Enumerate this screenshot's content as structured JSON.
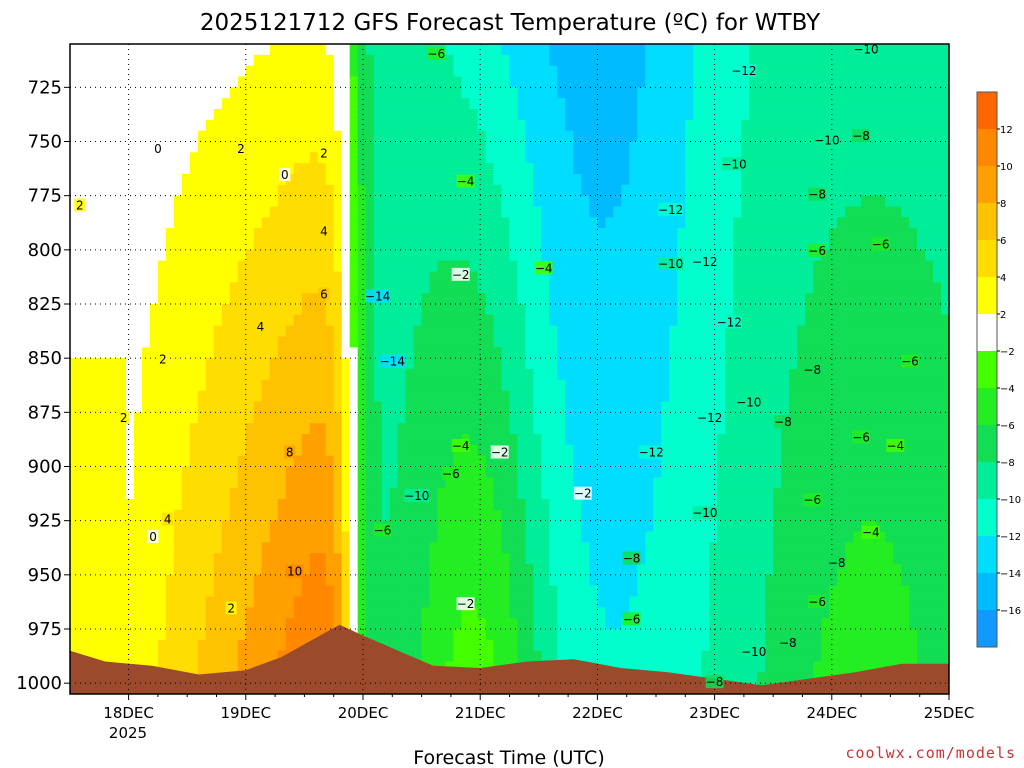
{
  "chart_data": {
    "type": "heatmap",
    "title": "2025121712 GFS Forecast Temperature (ºC) for WTBY",
    "xlabel": "Forecast Time (UTC)",
    "ylabel": "",
    "credit": "coolwx.com/models",
    "x_ticks": [
      "18DEC",
      "19DEC",
      "20DEC",
      "21DEC",
      "22DEC",
      "23DEC",
      "24DEC",
      "25DEC"
    ],
    "x_year": "2025",
    "x_range": [
      "17DEC 12Z",
      "25DEC 00Z"
    ],
    "y_ticks": [
      725,
      750,
      775,
      800,
      825,
      850,
      875,
      900,
      925,
      950,
      975,
      1000
    ],
    "y_range": [
      705,
      1005
    ],
    "y_inverted": true,
    "grid": true,
    "colorbar": {
      "placement": "right",
      "ticks": [
        12,
        10,
        8,
        6,
        4,
        2,
        -2,
        -4,
        -6,
        -8,
        -10,
        -12,
        -14,
        -16
      ],
      "colors": [
        "#ff6600",
        "#ff8800",
        "#ffa000",
        "#ffc200",
        "#ffdd00",
        "#ffff00",
        "#ffffff",
        "#44ff00",
        "#22ee22",
        "#11dd55",
        "#00ee99",
        "#00ffcc",
        "#00ddff",
        "#00bbff",
        "#1199ff"
      ]
    },
    "contour_labels": [
      {
        "t": "17DEC 14Z",
        "p": 780,
        "v": "2"
      },
      {
        "t": "18DEC 06Z",
        "p": 754,
        "v": "0"
      },
      {
        "t": "18DEC 23Z",
        "p": 754,
        "v": "2"
      },
      {
        "t": "19DEC 08Z",
        "p": 766,
        "v": "0"
      },
      {
        "t": "19DEC 16Z",
        "p": 756,
        "v": "2"
      },
      {
        "t": "19DEC 16Z",
        "p": 792,
        "v": "4"
      },
      {
        "t": "19DEC 16Z",
        "p": 821,
        "v": "6"
      },
      {
        "t": "19DEC 03Z",
        "p": 836,
        "v": "4"
      },
      {
        "t": "18DEC 07Z",
        "p": 851,
        "v": "2"
      },
      {
        "t": "17DEC 23Z",
        "p": 878,
        "v": "2"
      },
      {
        "t": "19DEC 09Z",
        "p": 894,
        "v": "8"
      },
      {
        "t": "18DEC 08Z",
        "p": 925,
        "v": "4"
      },
      {
        "t": "18DEC 05Z",
        "p": 933,
        "v": "0"
      },
      {
        "t": "18DEC 21Z",
        "p": 966,
        "v": "2"
      },
      {
        "t": "19DEC 10Z",
        "p": 949,
        "v": "10"
      },
      {
        "t": "20DEC 15Z",
        "p": 710,
        "v": "-6"
      },
      {
        "t": "20DEC 03Z",
        "p": 822,
        "v": "-14"
      },
      {
        "t": "20DEC 06Z",
        "p": 852,
        "v": "-14"
      },
      {
        "t": "20DEC 21Z",
        "p": 769,
        "v": "-4"
      },
      {
        "t": "20DEC 20Z",
        "p": 812,
        "v": "-2"
      },
      {
        "t": "21DEC 13Z",
        "p": 809,
        "v": "-4"
      },
      {
        "t": "20DEC 20Z",
        "p": 891,
        "v": "-4"
      },
      {
        "t": "21DEC 04Z",
        "p": 894,
        "v": "-2"
      },
      {
        "t": "20DEC 18Z",
        "p": 904,
        "v": "-6"
      },
      {
        "t": "20DEC 11Z",
        "p": 914,
        "v": "-10"
      },
      {
        "t": "20DEC 04Z",
        "p": 930,
        "v": "-6"
      },
      {
        "t": "20DEC 21Z",
        "p": 964,
        "v": "-2"
      },
      {
        "t": "21DEC 21Z",
        "p": 913,
        "v": "-2"
      },
      {
        "t": "22DEC 15Z",
        "p": 782,
        "v": "-12"
      },
      {
        "t": "22DEC 15Z",
        "p": 807,
        "v": "-10"
      },
      {
        "t": "22DEC 22Z",
        "p": 806,
        "v": "-12"
      },
      {
        "t": "23DEC 04Z",
        "p": 761,
        "v": "-10"
      },
      {
        "t": "23DEC 06Z",
        "p": 718,
        "v": "-12"
      },
      {
        "t": "23DEC 03Z",
        "p": 834,
        "v": "-12"
      },
      {
        "t": "23DEC 07Z",
        "p": 871,
        "v": "-10"
      },
      {
        "t": "22DEC 23Z",
        "p": 878,
        "v": "-12"
      },
      {
        "t": "22DEC 11Z",
        "p": 894,
        "v": "-12"
      },
      {
        "t": "22DEC 22Z",
        "p": 922,
        "v": "-10"
      },
      {
        "t": "22DEC 07Z",
        "p": 943,
        "v": "-8"
      },
      {
        "t": "22DEC 07Z",
        "p": 971,
        "v": "-6"
      },
      {
        "t": "23DEC 08Z",
        "p": 986,
        "v": "-10"
      },
      {
        "t": "23DEC 15Z",
        "p": 982,
        "v": "-8"
      },
      {
        "t": "23DEC 00Z",
        "p": 1000,
        "v": "-8"
      },
      {
        "t": "23DEC 14Z",
        "p": 880,
        "v": "-8"
      },
      {
        "t": "23DEC 20Z",
        "p": 856,
        "v": "-8"
      },
      {
        "t": "23DEC 20Z",
        "p": 916,
        "v": "-6"
      },
      {
        "t": "23DEC 21Z",
        "p": 801,
        "v": "-6"
      },
      {
        "t": "23DEC 21Z",
        "p": 775,
        "v": "-8"
      },
      {
        "t": "23DEC 23Z",
        "p": 750,
        "v": "-10"
      },
      {
        "t": "24DEC 06Z",
        "p": 748,
        "v": "-8"
      },
      {
        "t": "24DEC 07Z",
        "p": 708,
        "v": "-10"
      },
      {
        "t": "24DEC 10Z",
        "p": 798,
        "v": "-6"
      },
      {
        "t": "24DEC 16Z",
        "p": 852,
        "v": "-6"
      },
      {
        "t": "24DEC 06Z",
        "p": 887,
        "v": "-6"
      },
      {
        "t": "24DEC 13Z",
        "p": 891,
        "v": "-4"
      },
      {
        "t": "24DEC 01Z",
        "p": 945,
        "v": "-8"
      },
      {
        "t": "23DEC 21Z",
        "p": 963,
        "v": "-6"
      },
      {
        "t": "24DEC 08Z",
        "p": 931,
        "v": "-4"
      }
    ]
  }
}
